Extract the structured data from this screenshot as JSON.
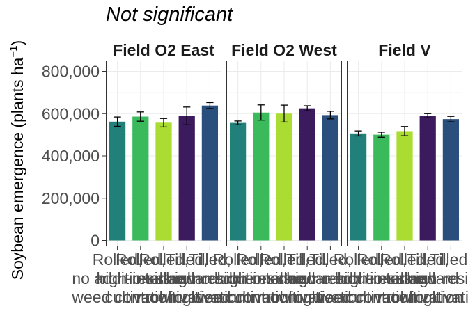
{
  "chart_data": {
    "type": "bar",
    "title": "Not significant",
    "ylabel": "Soybean emergence (plants ha",
    "ylabel_sup": "−1",
    "ylabel_close": ")",
    "ylim": [
      0,
      850000
    ],
    "yticks": [
      0,
      200000,
      400000,
      600000,
      800000
    ],
    "ytick_labels": [
      "0",
      "200,000",
      "400,000",
      "600,000",
      "800,000"
    ],
    "grid": true,
    "categories": [
      "Rolled,\nno additional\nweed control",
      "Rolled,\nhigh-residue\ncultivation",
      "Rolled,\ninter-row\nmowing",
      "Tilled,\nstandard\ncultivation",
      "Tilled,\nhigh-residue\ncultivation"
    ],
    "colors": [
      "#21817a",
      "#3bba5c",
      "#aadc32",
      "#3b1a5e",
      "#2a4f7c"
    ],
    "panels": [
      {
        "name": "Field O2 East",
        "values": [
          562000,
          586000,
          557000,
          589000,
          638000
        ],
        "errors": [
          22000,
          22000,
          20000,
          42000,
          14000
        ]
      },
      {
        "name": "Field O2 West",
        "values": [
          556000,
          605000,
          600000,
          625000,
          593000
        ],
        "errors": [
          9000,
          36000,
          40000,
          12000,
          18000
        ]
      },
      {
        "name": "Field V",
        "values": [
          506000,
          500000,
          517000,
          590000,
          574000
        ],
        "errors": [
          12000,
          12000,
          22000,
          10000,
          13000
        ]
      }
    ]
  }
}
